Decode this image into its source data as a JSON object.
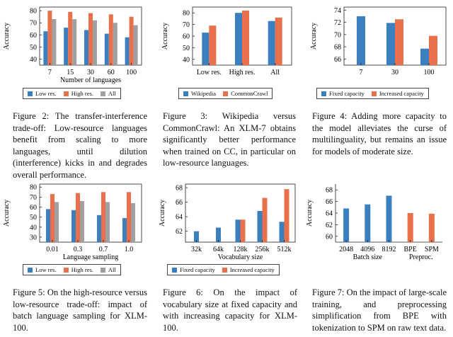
{
  "colors": {
    "low": "#3c7fbf",
    "high": "#e8704b",
    "all": "#a0a0a0",
    "fixed": "#3c7fbf",
    "increased": "#e8704b"
  },
  "charts": [
    {
      "id": "fig2",
      "chart_data": {
        "type": "bar",
        "categories": [
          "7",
          "15",
          "30",
          "60",
          "100"
        ],
        "series": [
          {
            "name": "Low res.",
            "color_key": "low",
            "values": [
              63,
              66,
              64,
              61,
              58
            ]
          },
          {
            "name": "High res.",
            "color_key": "high",
            "values": [
              80,
              79,
              78,
              77,
              75
            ]
          },
          {
            "name": "All",
            "color_key": "all",
            "values": [
              73,
              73,
              72,
              70,
              68
            ]
          }
        ],
        "xlabel": "Number of languages",
        "ylabel": "Accuracy",
        "yticks": [
          40,
          50,
          60,
          70,
          80
        ],
        "ylim": [
          35,
          83
        ]
      }
    },
    {
      "id": "fig3",
      "chart_data": {
        "type": "bar",
        "categories": [
          "Low res.",
          "High res.",
          "All"
        ],
        "series": [
          {
            "name": "Wikipedia",
            "color_key": "low",
            "values": [
              63,
              80,
              73
            ]
          },
          {
            "name": "CommonCrawl",
            "color_key": "high",
            "values": [
              69,
              82,
              76
            ]
          }
        ],
        "xlabel": "",
        "ylabel": "Accuracy",
        "yticks": [
          40,
          50,
          60,
          70,
          80
        ],
        "ylim": [
          35,
          85
        ]
      }
    },
    {
      "id": "fig4",
      "chart_data": {
        "type": "bar",
        "categories": [
          "7",
          "30",
          "100"
        ],
        "series": [
          {
            "name": "Fixed capacity",
            "color_key": "fixed",
            "values": [
              73,
              71.9,
              67.7
            ]
          },
          {
            "name": "Increased capacity",
            "color_key": "increased",
            "values": [
              null,
              72.5,
              69.8
            ]
          }
        ],
        "xlabel": "",
        "ylabel": "Accuracy",
        "yticks": [
          66,
          68,
          70,
          72,
          74
        ],
        "ylim": [
          65,
          74.5
        ]
      }
    },
    {
      "id": "fig5",
      "chart_data": {
        "type": "bar",
        "categories": [
          "0.01",
          "0.3",
          "0.7",
          "1.0"
        ],
        "series": [
          {
            "name": "Low res.",
            "color_key": "low",
            "values": [
              58,
              57,
              52,
              49
            ]
          },
          {
            "name": "High res.",
            "color_key": "high",
            "values": [
              73,
              74,
              75,
              75
            ]
          },
          {
            "name": "All",
            "color_key": "all",
            "values": [
              65,
              66,
              65,
              64
            ]
          }
        ],
        "xlabel": "Language sampling",
        "ylabel": "Accuracy",
        "yticks": [
          30,
          40,
          50,
          60,
          70,
          80
        ],
        "ylim": [
          25,
          83
        ]
      }
    },
    {
      "id": "fig6",
      "chart_data": {
        "type": "bar",
        "categories": [
          "32k",
          "64k",
          "128k",
          "256k",
          "512k"
        ],
        "series": [
          {
            "name": "Fixed capacity",
            "color_key": "fixed",
            "values": [
              62,
              62.5,
              63.6,
              64.8,
              63.3
            ]
          },
          {
            "name": "Increased capacity",
            "color_key": "increased",
            "values": [
              null,
              null,
              63.6,
              66.6,
              67.8
            ]
          }
        ],
        "xlabel": "Vocabulary size",
        "ylabel": "Accuracy",
        "yticks": [
          62,
          64,
          66,
          68
        ],
        "ylim": [
          60.5,
          68.5
        ]
      }
    },
    {
      "id": "fig7",
      "chart_data": {
        "type": "bar",
        "categories": [
          "2048",
          "4096",
          "8192",
          "BPE",
          "SPM"
        ],
        "series": [
          {
            "name": "Batch size",
            "color_key": "fixed",
            "values": [
              64.8,
              65.5,
              67,
              null,
              null
            ]
          },
          {
            "name": "Preproc.",
            "color_key": "increased",
            "values": [
              null,
              null,
              null,
              64,
              63.9
            ]
          }
        ],
        "xlabel": "",
        "group_labels": [
          "Batch size",
          "Preproc."
        ],
        "ylabel": "Accuracy",
        "yticks": [
          60,
          62,
          64,
          66,
          68
        ],
        "ylim": [
          59,
          69
        ]
      }
    }
  ],
  "captions": {
    "fig2": "Figure 2: The transfer-interference trade-off: Low-resource languages benefit from scaling to more languages, until dilution (interference) kicks in and degrades overall performance.",
    "fig3": "Figure 3: Wikipedia versus CommonCrawl: An XLM-7 obtains significantly better performance when trained on CC, in particular on low-resource languages.",
    "fig4": "Figure 4: Adding more capacity to the model alleviates the curse of multilinguality, but remains an issue for models of moderate size.",
    "fig5": "Figure 5: On the high-resource versus low-resource trade-off: impact of batch language sampling for XLM-100.",
    "fig6": "Figure 6: On the impact of vocabulary size at fixed capacity and with increasing capacity for XLM-100.",
    "fig7": "Figure 7: On the impact of large-scale training, and preprocessing simplification from BPE with tokenization to SPM on raw text data."
  }
}
